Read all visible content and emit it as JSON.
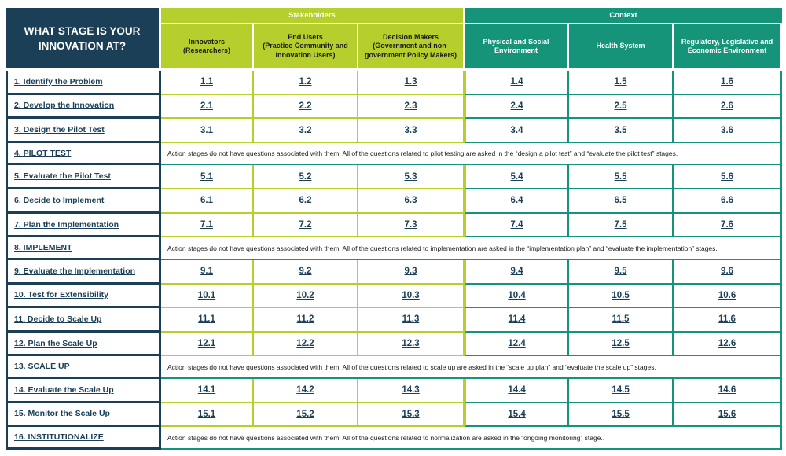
{
  "corner_label": "WHAT STAGE IS YOUR INNOVATION AT?",
  "groups": {
    "stakeholders": "Stakeholders",
    "context": "Context"
  },
  "columns": [
    {
      "title": "Innovators",
      "subtitle": "(Researchers)"
    },
    {
      "title": "End Users",
      "subtitle": "(Practice Community and Innovation Users)"
    },
    {
      "title": "Decision Makers",
      "subtitle": "(Government and non-government Policy Makers)"
    },
    {
      "title": "Physical and Social Environment",
      "subtitle": ""
    },
    {
      "title": "Health System",
      "subtitle": ""
    },
    {
      "title": "Regulatory, Legislative and Economic Environment",
      "subtitle": ""
    }
  ],
  "colors": {
    "navy": "#1a3f57",
    "lime": "#b6cf2c",
    "teal": "#16947a"
  },
  "rows": [
    {
      "label": "1. Identify the Problem",
      "cells": [
        "1.1",
        "1.2",
        "1.3",
        "1.4",
        "1.5",
        "1.6"
      ]
    },
    {
      "label": "2. Develop the Innovation",
      "cells": [
        "2.1",
        "2.2",
        "2.3",
        "2.4",
        "2.5",
        "2.6"
      ]
    },
    {
      "label": "3. Design the Pilot Test",
      "cells": [
        "3.1",
        "3.2",
        "3.3",
        "3.4",
        "3.5",
        "3.6"
      ]
    },
    {
      "label": "4. PILOT TEST",
      "note": "Action stages do not have questions associated with them. All of the questions related to pilot testing are asked in the “design a pilot test” and “evaluate the pilot test” stages."
    },
    {
      "label": "5. Evaluate the Pilot Test",
      "cells": [
        "5.1",
        "5.2",
        "5.3",
        "5.4",
        "5.5",
        "5.6"
      ]
    },
    {
      "label": "6. Decide to Implement",
      "cells": [
        "6.1",
        "6.2",
        "6.3",
        "6.4",
        "6.5",
        "6.6"
      ]
    },
    {
      "label": "7. Plan the Implementation",
      "cells": [
        "7.1",
        "7.2",
        "7.3",
        "7.4",
        "7.5",
        "7.6"
      ]
    },
    {
      "label": "8. IMPLEMENT",
      "note": "Action stages do not have questions associated with them. All of the questions related to implementation are asked in the “implementation plan” and “evaluate the implementation” stages."
    },
    {
      "label": "9. Evaluate the Implementation",
      "cells": [
        "9.1",
        "9.2",
        "9.3",
        "9.4",
        "9.5",
        "9.6"
      ]
    },
    {
      "label": "10. Test for Extensibility",
      "cells": [
        "10.1",
        "10.2",
        "10.3",
        "10.4",
        "10.5",
        "10.6"
      ]
    },
    {
      "label": "11. Decide to Scale Up",
      "cells": [
        "11.1",
        "11.2",
        "11.3",
        "11.4",
        "11.5",
        "11.6"
      ]
    },
    {
      "label": "12. Plan the Scale Up",
      "cells": [
        "12.1",
        "12.2",
        "12.3",
        "12.4",
        "12.5",
        "12.6"
      ]
    },
    {
      "label": "13. SCALE UP",
      "note": "Action stages do not have questions associated with them. All of the questions related to scale up are asked in the “scale up plan” and “evaluate the scale up” stages."
    },
    {
      "label": "14. Evaluate the Scale Up",
      "cells": [
        "14.1",
        "14.2",
        "14.3",
        "14.4",
        "14.5",
        "14.6"
      ]
    },
    {
      "label": "15.  Monitor the Scale Up",
      "cells": [
        "15.1",
        "15.2",
        "15.3",
        "15.4",
        "15.5",
        "15.6"
      ]
    },
    {
      "label": "16. INSTITUTIONALIZE",
      "note": "Action stages do not have questions associated with them. All of the questions related to normalization are asked in the “ongoing monitoring” stage.."
    }
  ]
}
